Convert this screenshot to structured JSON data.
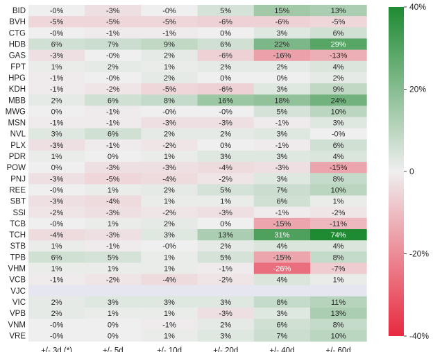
{
  "chart_data": {
    "type": "heatmap",
    "title": "",
    "xlabel": "",
    "ylabel": "",
    "columns": [
      "+/- 3d (*)",
      "+/- 5d",
      "+/- 10d",
      "+/- 20d",
      "+/- 40d",
      "+/- 60d"
    ],
    "rows": [
      "BID",
      "BVH",
      "CTG",
      "HDB",
      "GAS",
      "FPT",
      "HPG",
      "KDH",
      "MBB",
      "MWG",
      "MSN",
      "NVL",
      "PLX",
      "PDR",
      "POW",
      "PNJ",
      "REE",
      "SBT",
      "SSI",
      "TCB",
      "TCH",
      "STB",
      "TPB",
      "VHM",
      "VCB",
      "VJC",
      "VIC",
      "VPB",
      "VNM",
      "VRE"
    ],
    "values": [
      [
        0,
        -3,
        0,
        5,
        15,
        13
      ],
      [
        -5,
        -5,
        -5,
        -6,
        -6,
        -5
      ],
      [
        0,
        -1,
        -1,
        0,
        3,
        6
      ],
      [
        6,
        7,
        9,
        6,
        22,
        29
      ],
      [
        -3,
        0,
        2,
        -6,
        -16,
        -13
      ],
      [
        1,
        2,
        1,
        2,
        2,
        4
      ],
      [
        -1,
        0,
        2,
        0,
        0,
        2
      ],
      [
        -1,
        -2,
        -5,
        -6,
        3,
        9
      ],
      [
        2,
        6,
        8,
        16,
        18,
        24
      ],
      [
        0,
        -1,
        0,
        0,
        5,
        10
      ],
      [
        -1,
        -1,
        -3,
        -3,
        -1,
        3
      ],
      [
        3,
        6,
        2,
        2,
        3,
        0
      ],
      [
        -3,
        -1,
        -2,
        0,
        -1,
        6
      ],
      [
        1,
        0,
        1,
        3,
        3,
        4
      ],
      [
        0,
        -3,
        -3,
        -4,
        -3,
        -15
      ],
      [
        -3,
        -5,
        -4,
        -2,
        3,
        8
      ],
      [
        0,
        1,
        2,
        5,
        7,
        10
      ],
      [
        -3,
        -4,
        1,
        1,
        6,
        1
      ],
      [
        -2,
        -3,
        -2,
        -3,
        -1,
        -2
      ],
      [
        0,
        1,
        2,
        0,
        -15,
        -11
      ],
      [
        -4,
        -3,
        3,
        13,
        31,
        74
      ],
      [
        1,
        -1,
        0,
        2,
        4,
        4
      ],
      [
        6,
        5,
        1,
        5,
        -15,
        8
      ],
      [
        1,
        1,
        1,
        -1,
        -26,
        -7
      ],
      [
        -1,
        -2,
        -4,
        -2,
        4,
        1
      ],
      [
        null,
        null,
        null,
        null,
        null,
        null
      ],
      [
        2,
        3,
        3,
        3,
        8,
        11
      ],
      [
        2,
        1,
        1,
        -3,
        3,
        13
      ],
      [
        0,
        0,
        -1,
        2,
        6,
        8
      ],
      [
        0,
        0,
        1,
        3,
        7,
        10
      ]
    ],
    "value_suffix": "%",
    "colorbar": {
      "min": -40,
      "max": 40,
      "ticks": [
        -40,
        -20,
        0,
        20,
        40
      ],
      "tick_labels": [
        "-40%",
        "-20%",
        "0",
        "20%",
        "40%"
      ],
      "colors": {
        "low": "#e8293f",
        "mid": "#efefef",
        "high": "#1e8a32"
      }
    },
    "missing_cell_color": "#e6e6f0",
    "grid": false,
    "legend": "right"
  }
}
